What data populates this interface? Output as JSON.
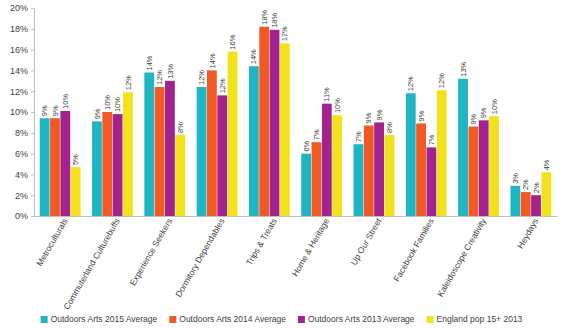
{
  "chart_data": {
    "type": "bar",
    "categories": [
      "Metroculturals",
      "Commuterland Culturebuffs",
      "Experience Seekers",
      "Dormitory Dependables",
      "Trips & Treats",
      "Home & Heritage",
      "Up Our Street",
      "Facebook Families",
      "Kaleidoscope Creativity",
      "Heydays"
    ],
    "series": [
      {
        "name": "Outdoors Arts 2015 Average",
        "color": "#1fb5c3",
        "values": [
          9.4,
          9.1,
          13.8,
          12.4,
          14.4,
          6.0,
          6.9,
          11.8,
          13.2,
          2.9
        ],
        "value_labels": [
          "9%",
          "9%",
          "14%",
          "12%",
          "14%",
          "6%",
          "7%",
          "12%",
          "13%",
          "3%"
        ]
      },
      {
        "name": "Outdoors Arts 2014 Average",
        "color": "#f15a24",
        "values": [
          9.4,
          10.0,
          12.4,
          14.0,
          18.2,
          7.1,
          8.7,
          8.9,
          8.6,
          2.3
        ],
        "value_labels": [
          "9%",
          "10%",
          "12%",
          "14%",
          "18%",
          "7%",
          "9%",
          "9%",
          "9%",
          "2%"
        ]
      },
      {
        "name": "Outdoors Arts 2013 Average",
        "color": "#a3238e",
        "values": [
          10.1,
          9.8,
          13.0,
          11.6,
          17.9,
          10.8,
          9.0,
          6.6,
          9.2,
          2.0
        ],
        "value_labels": [
          "10%",
          "10%",
          "13%",
          "12%",
          "18%",
          "11%",
          "9%",
          "7%",
          "9%",
          "2%"
        ]
      },
      {
        "name": "England pop 15+ 2013",
        "color": "#f2e21b",
        "values": [
          4.7,
          11.9,
          7.8,
          15.8,
          16.6,
          9.7,
          7.8,
          12.1,
          9.6,
          4.2
        ],
        "value_labels": [
          "5%",
          "12%",
          "8%",
          "16%",
          "17%",
          "10%",
          "8%",
          "12%",
          "10%",
          "4%"
        ]
      }
    ],
    "ylim": [
      0,
      20
    ],
    "yticks": [
      {
        "value": 0,
        "label": "0%"
      },
      {
        "value": 2,
        "label": "2%"
      },
      {
        "value": 4,
        "label": "4%"
      },
      {
        "value": 6,
        "label": "6%"
      },
      {
        "value": 8,
        "label": "8%"
      },
      {
        "value": 10,
        "label": "10%"
      },
      {
        "value": 12,
        "label": "12%"
      },
      {
        "value": 14,
        "label": "14%"
      },
      {
        "value": 16,
        "label": "16%"
      },
      {
        "value": 18,
        "label": "18%"
      },
      {
        "value": 20,
        "label": "20%"
      }
    ],
    "grid": false,
    "legend": "bottom",
    "data_labels": true
  }
}
